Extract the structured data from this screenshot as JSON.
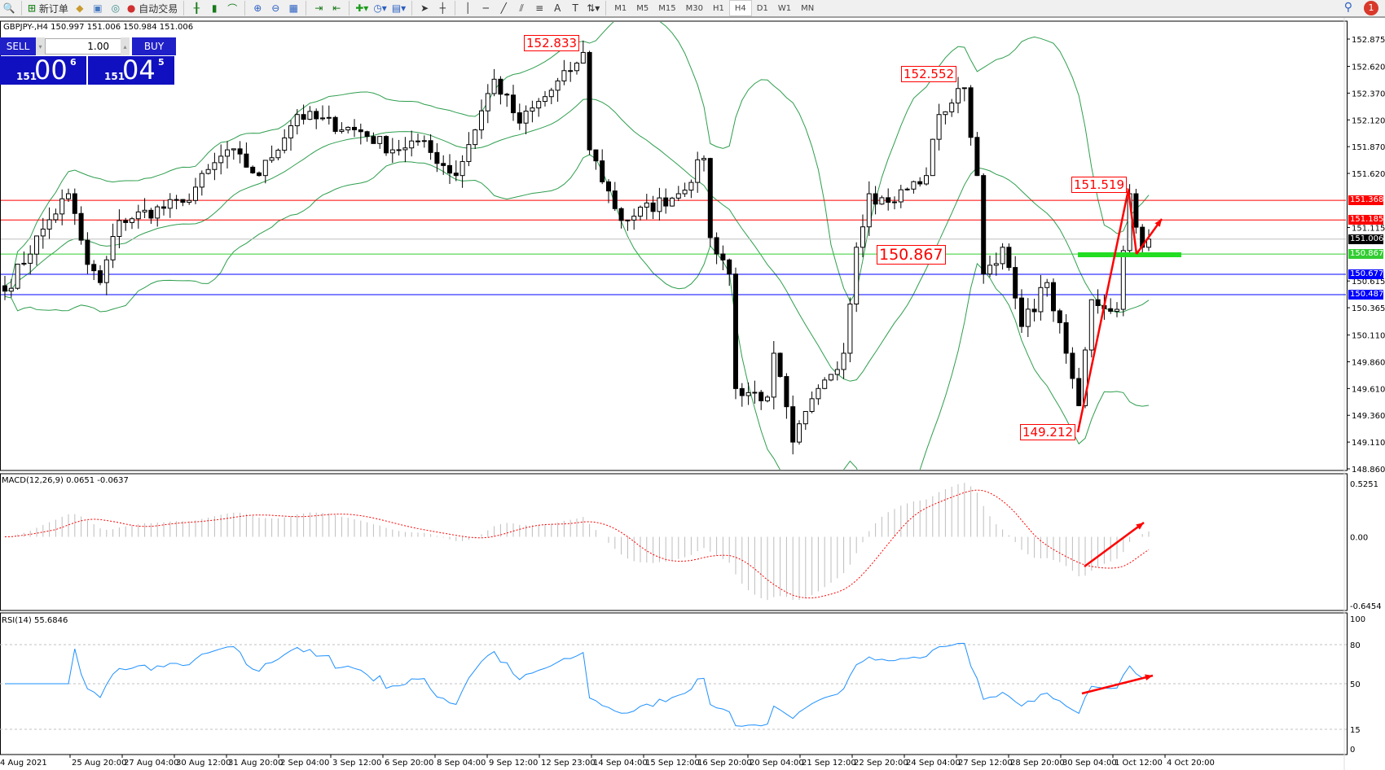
{
  "toolbar": {
    "new_order": "新订单",
    "auto_trading": "自动交易",
    "timeframes": [
      "M1",
      "M5",
      "M15",
      "M30",
      "H1",
      "H4",
      "D1",
      "W1",
      "MN"
    ],
    "active_timeframe": "H4",
    "notifications": "1",
    "icons": [
      "new-order-icon",
      "market-watch-icon",
      "navigator-icon",
      "signals-icon",
      "auto-trading-icon",
      "bar-chart-icon",
      "candlestick-icon",
      "line-chart-icon",
      "zoom-in-icon",
      "zoom-out-icon",
      "tile-windows-icon",
      "autoscroll-icon",
      "chart-shift-icon",
      "indicators-icon",
      "periods-icon",
      "templates-icon",
      "cursor-icon",
      "crosshair-icon",
      "vertical-line-icon",
      "horizontal-line-icon",
      "trendline-icon",
      "equidistant-channel-icon",
      "fibonacci-icon",
      "text-icon",
      "text-label-icon",
      "arrows-icon",
      "search-icon",
      "chat-icon"
    ]
  },
  "header": {
    "symbol_info": "GBPJPY-,H4  150.997 151.006 150.984 151.006"
  },
  "one_click": {
    "sell": "SELL",
    "buy": "BUY",
    "lot": "1.00",
    "sell_price": {
      "prefix": "151",
      "big": "00",
      "sup": "6"
    },
    "buy_price": {
      "prefix": "151",
      "big": "04",
      "sup": "5"
    }
  },
  "chart_data": {
    "type": "candlestick",
    "symbol": "GBPJPY-",
    "timeframe": "H4",
    "y_ticks": [
      "152.875",
      "152.620",
      "152.370",
      "152.120",
      "151.870",
      "151.620",
      "151.115",
      "150.615",
      "150.365",
      "150.110",
      "149.860",
      "149.610",
      "149.360",
      "149.110",
      "148.860"
    ],
    "ylim": [
      148.86,
      152.875
    ],
    "x_ticks": [
      "4 Aug 2021",
      "25 Aug 20:00",
      "27 Aug 04:00",
      "30 Aug 12:00",
      "31 Aug 20:00",
      "2 Sep 04:00",
      "3 Sep 12:00",
      "6 Sep 20:00",
      "8 Sep 04:00",
      "9 Sep 12:00",
      "12 Sep 23:00",
      "14 Sep 04:00",
      "15 Sep 12:00",
      "16 Sep 20:00",
      "20 Sep 04:00",
      "21 Sep 12:00",
      "22 Sep 20:00",
      "24 Sep 04:00",
      "27 Sep 12:00",
      "28 Sep 20:00",
      "30 Sep 04:00",
      "1 Oct 12:00",
      "4 Oct 20:00"
    ],
    "price_path": [
      [
        0,
        150.52
      ],
      [
        6,
        151.1
      ],
      [
        10,
        151.43
      ],
      [
        13,
        150.77
      ],
      [
        15,
        150.6
      ],
      [
        18,
        151.18
      ],
      [
        28,
        151.35
      ],
      [
        35,
        151.84
      ],
      [
        40,
        151.6
      ],
      [
        46,
        152.17
      ],
      [
        56,
        152.01
      ],
      [
        61,
        151.84
      ],
      [
        65,
        151.92
      ],
      [
        71,
        151.6
      ],
      [
        77,
        152.5
      ],
      [
        81,
        152.09
      ],
      [
        89,
        152.58
      ],
      [
        91,
        152.75
      ],
      [
        92,
        151.84
      ],
      [
        97,
        151.18
      ],
      [
        106,
        151.43
      ],
      [
        110,
        151.76
      ],
      [
        111,
        151.02
      ],
      [
        114,
        150.68
      ],
      [
        115,
        149.61
      ],
      [
        120,
        149.53
      ],
      [
        121,
        149.94
      ],
      [
        124,
        149.11
      ],
      [
        129,
        149.69
      ],
      [
        132,
        149.94
      ],
      [
        134,
        150.93
      ],
      [
        136,
        151.43
      ],
      [
        139,
        151.35
      ],
      [
        145,
        151.6
      ],
      [
        147,
        152.17
      ],
      [
        151,
        152.42
      ],
      [
        153,
        151.6
      ],
      [
        154,
        150.68
      ],
      [
        157,
        150.93
      ],
      [
        160,
        150.19
      ],
      [
        164,
        150.6
      ],
      [
        167,
        149.94
      ],
      [
        169,
        149.45
      ],
      [
        171,
        150.44
      ],
      [
        175,
        150.35
      ],
      [
        177,
        151.43
      ],
      [
        179,
        150.93
      ],
      [
        180,
        151.006
      ]
    ],
    "indicators": [
      "Bollinger Bands (20)"
    ],
    "lines": [
      {
        "price": "151.368",
        "color": "#ff0000"
      },
      {
        "price": "151.185",
        "color": "#ff0000"
      },
      {
        "price": "151.006",
        "color": "#000000",
        "kind": "bid"
      },
      {
        "price": "150.867",
        "color": "#32cd32"
      },
      {
        "price": "150.677",
        "color": "#0000ff"
      },
      {
        "price": "150.487",
        "color": "#0000ff"
      }
    ],
    "annotations": [
      "152.833",
      "152.552",
      "151.519",
      "150.867",
      "149.212"
    ],
    "macd": {
      "label": "MACD(12,26,9) 0.0651 -0.0637",
      "ticks": [
        "0.5251",
        "0.00",
        "-0.6454"
      ],
      "range": [
        -0.6454,
        0.5251
      ]
    },
    "rsi": {
      "label": "RSI(14) 55.6846",
      "ticks": [
        "100",
        "80",
        "50",
        "15",
        "0"
      ],
      "levels": [
        80,
        50,
        15
      ]
    }
  }
}
